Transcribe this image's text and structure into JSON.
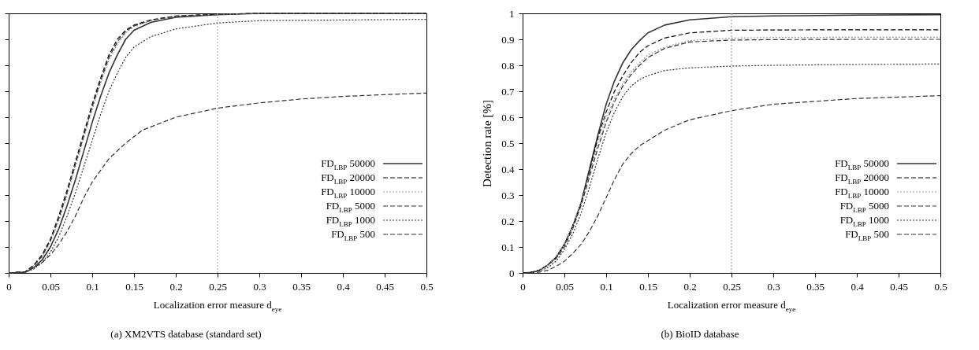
{
  "chart_data": [
    {
      "type": "line",
      "xlabel": "Localization error measure d$_{eye}$",
      "annotations": [
        "(a) XM2VTS database (standard set)"
      ],
      "xlim": [
        0,
        0.5
      ],
      "xticks": [
        0,
        0.05,
        0.1,
        0.15,
        0.2,
        0.25,
        0.3,
        0.35,
        0.4,
        0.45,
        0.5
      ],
      "ylim": [
        0,
        1
      ],
      "yticks": [
        0,
        0.1,
        0.2,
        0.3,
        0.4,
        0.5,
        0.6,
        0.7,
        0.8,
        0.9,
        1
      ],
      "tick_labels": "x",
      "grid": false,
      "legend": "bottom right",
      "ref_lines": [
        {
          "axis": "x",
          "value": 0.25,
          "color": "#999999",
          "line_style": "dotted"
        }
      ],
      "series": [
        {
          "name": "FD$_{LBP}$ 50000",
          "color": "#333333",
          "line_style": "solid",
          "x": [
            0,
            0.02,
            0.03,
            0.04,
            0.05,
            0.06,
            0.07,
            0.08,
            0.09,
            0.1,
            0.11,
            0.12,
            0.13,
            0.14,
            0.15,
            0.17,
            0.2,
            0.25,
            0.3,
            0.5
          ],
          "values": [
            0,
            0.003,
            0.02,
            0.05,
            0.1,
            0.17,
            0.26,
            0.36,
            0.47,
            0.58,
            0.68,
            0.77,
            0.84,
            0.9,
            0.935,
            0.965,
            0.985,
            0.995,
            1,
            1
          ]
        },
        {
          "name": "FD$_{LBP}$ 20000",
          "color": "#000000",
          "line_style": "dashed",
          "x": [
            0,
            0.02,
            0.03,
            0.04,
            0.05,
            0.06,
            0.07,
            0.08,
            0.09,
            0.1,
            0.11,
            0.12,
            0.13,
            0.14,
            0.15,
            0.17,
            0.2,
            0.25,
            0.3,
            0.5
          ],
          "values": [
            0,
            0.005,
            0.03,
            0.07,
            0.13,
            0.22,
            0.32,
            0.43,
            0.54,
            0.65,
            0.75,
            0.84,
            0.9,
            0.935,
            0.955,
            0.975,
            0.99,
            0.997,
            1,
            1
          ]
        },
        {
          "name": "FD$_{LBP}$ 10000",
          "color": "#999999",
          "line_style": "dotted",
          "x": [
            0,
            0.02,
            0.03,
            0.04,
            0.05,
            0.06,
            0.07,
            0.08,
            0.09,
            0.1,
            0.11,
            0.12,
            0.13,
            0.14,
            0.15,
            0.17,
            0.2,
            0.25,
            0.3,
            0.5
          ],
          "values": [
            0,
            0.004,
            0.025,
            0.06,
            0.12,
            0.2,
            0.3,
            0.41,
            0.52,
            0.63,
            0.73,
            0.82,
            0.88,
            0.925,
            0.95,
            0.972,
            0.988,
            0.996,
            1,
            1
          ]
        },
        {
          "name": "FD$_{LBP}$ 5000",
          "color": "#333333",
          "line_style": "dashed",
          "x": [
            0,
            0.02,
            0.03,
            0.04,
            0.05,
            0.06,
            0.07,
            0.08,
            0.09,
            0.1,
            0.11,
            0.12,
            0.13,
            0.14,
            0.15,
            0.17,
            0.2,
            0.25,
            0.3,
            0.5
          ],
          "values": [
            0,
            0.004,
            0.027,
            0.065,
            0.125,
            0.21,
            0.31,
            0.42,
            0.53,
            0.64,
            0.74,
            0.83,
            0.89,
            0.93,
            0.952,
            0.973,
            0.989,
            0.996,
            1,
            1
          ]
        },
        {
          "name": "FD$_{LBP}$ 1000",
          "color": "#333333",
          "line_style": "dotted",
          "x": [
            0,
            0.02,
            0.03,
            0.04,
            0.05,
            0.06,
            0.07,
            0.08,
            0.09,
            0.1,
            0.11,
            0.12,
            0.13,
            0.14,
            0.15,
            0.17,
            0.2,
            0.25,
            0.3,
            0.5
          ],
          "values": [
            0,
            0.002,
            0.015,
            0.04,
            0.08,
            0.14,
            0.22,
            0.31,
            0.41,
            0.51,
            0.61,
            0.7,
            0.77,
            0.83,
            0.87,
            0.91,
            0.94,
            0.963,
            0.972,
            0.977
          ]
        },
        {
          "name": "FD$_{LBP}$ 500",
          "color": "#333333",
          "line_style": "dashed",
          "x": [
            0,
            0.02,
            0.03,
            0.04,
            0.05,
            0.06,
            0.07,
            0.08,
            0.09,
            0.1,
            0.12,
            0.14,
            0.16,
            0.18,
            0.2,
            0.25,
            0.3,
            0.35,
            0.4,
            0.45,
            0.5
          ],
          "values": [
            0,
            0.005,
            0.02,
            0.04,
            0.07,
            0.11,
            0.16,
            0.22,
            0.29,
            0.35,
            0.44,
            0.5,
            0.55,
            0.575,
            0.6,
            0.635,
            0.655,
            0.67,
            0.68,
            0.687,
            0.693
          ]
        }
      ]
    },
    {
      "type": "line",
      "xlabel": "Localization error measure d$_{eye}$",
      "ylabel": "Detection rate [%]",
      "annotations": [
        "(b) BioID database"
      ],
      "xlim": [
        0,
        0.5
      ],
      "xticks": [
        0,
        0.05,
        0.1,
        0.15,
        0.2,
        0.25,
        0.3,
        0.35,
        0.4,
        0.45,
        0.5
      ],
      "ylim": [
        0,
        1
      ],
      "yticks": [
        0,
        0.1,
        0.2,
        0.3,
        0.4,
        0.5,
        0.6,
        0.7,
        0.8,
        0.9,
        1
      ],
      "grid": false,
      "legend": "bottom right",
      "ref_lines": [
        {
          "axis": "x",
          "value": 0.25,
          "color": "#999999",
          "line_style": "dotted"
        }
      ],
      "series": [
        {
          "name": "FD$_{LBP}$ 50000",
          "color": "#333333",
          "line_style": "solid",
          "x": [
            0,
            0.01,
            0.02,
            0.03,
            0.04,
            0.05,
            0.06,
            0.07,
            0.08,
            0.09,
            0.1,
            0.11,
            0.12,
            0.13,
            0.14,
            0.15,
            0.17,
            0.2,
            0.25,
            0.3,
            0.4,
            0.5
          ],
          "values": [
            0,
            0.002,
            0.01,
            0.03,
            0.06,
            0.11,
            0.18,
            0.27,
            0.4,
            0.53,
            0.65,
            0.74,
            0.81,
            0.86,
            0.895,
            0.925,
            0.955,
            0.975,
            0.987,
            0.99,
            0.993,
            0.995
          ]
        },
        {
          "name": "FD$_{LBP}$ 20000",
          "color": "#000000",
          "line_style": "dashed",
          "x": [
            0,
            0.01,
            0.02,
            0.03,
            0.04,
            0.05,
            0.06,
            0.07,
            0.08,
            0.09,
            0.1,
            0.11,
            0.12,
            0.13,
            0.14,
            0.15,
            0.17,
            0.2,
            0.25,
            0.3,
            0.4,
            0.5
          ],
          "values": [
            0,
            0.002,
            0.01,
            0.03,
            0.06,
            0.11,
            0.18,
            0.27,
            0.39,
            0.52,
            0.62,
            0.7,
            0.76,
            0.81,
            0.85,
            0.875,
            0.905,
            0.925,
            0.935,
            0.936,
            0.937,
            0.937
          ]
        },
        {
          "name": "FD$_{LBP}$ 10000",
          "color": "#999999",
          "line_style": "dotted",
          "x": [
            0,
            0.01,
            0.02,
            0.03,
            0.04,
            0.05,
            0.06,
            0.07,
            0.08,
            0.09,
            0.1,
            0.11,
            0.12,
            0.13,
            0.14,
            0.15,
            0.17,
            0.2,
            0.25,
            0.3,
            0.4,
            0.5
          ],
          "values": [
            0,
            0.002,
            0.01,
            0.03,
            0.06,
            0.11,
            0.18,
            0.27,
            0.38,
            0.5,
            0.6,
            0.67,
            0.73,
            0.775,
            0.81,
            0.84,
            0.87,
            0.895,
            0.905,
            0.907,
            0.908,
            0.908
          ]
        },
        {
          "name": "FD$_{LBP}$ 5000",
          "color": "#333333",
          "line_style": "dashed",
          "x": [
            0,
            0.01,
            0.02,
            0.03,
            0.04,
            0.05,
            0.06,
            0.07,
            0.08,
            0.09,
            0.1,
            0.11,
            0.12,
            0.13,
            0.14,
            0.15,
            0.17,
            0.2,
            0.25,
            0.3,
            0.4,
            0.5
          ],
          "values": [
            0,
            0.002,
            0.01,
            0.03,
            0.055,
            0.1,
            0.17,
            0.26,
            0.37,
            0.48,
            0.58,
            0.66,
            0.72,
            0.765,
            0.8,
            0.83,
            0.865,
            0.89,
            0.897,
            0.899,
            0.9,
            0.9
          ]
        },
        {
          "name": "FD$_{LBP}$ 1000",
          "color": "#333333",
          "line_style": "dotted",
          "x": [
            0,
            0.01,
            0.02,
            0.03,
            0.04,
            0.05,
            0.06,
            0.07,
            0.08,
            0.09,
            0.1,
            0.11,
            0.12,
            0.13,
            0.14,
            0.15,
            0.17,
            0.2,
            0.25,
            0.3,
            0.4,
            0.5
          ],
          "values": [
            0,
            0.001,
            0.007,
            0.02,
            0.045,
            0.09,
            0.15,
            0.23,
            0.33,
            0.44,
            0.54,
            0.62,
            0.68,
            0.72,
            0.745,
            0.76,
            0.78,
            0.79,
            0.797,
            0.8,
            0.803,
            0.805
          ]
        },
        {
          "name": "FD$_{LBP}$ 500",
          "color": "#333333",
          "line_style": "dashed",
          "x": [
            0,
            0.01,
            0.02,
            0.03,
            0.04,
            0.05,
            0.06,
            0.07,
            0.08,
            0.09,
            0.1,
            0.11,
            0.12,
            0.13,
            0.14,
            0.15,
            0.17,
            0.2,
            0.25,
            0.3,
            0.4,
            0.5
          ],
          "values": [
            0,
            0.001,
            0.003,
            0.01,
            0.025,
            0.045,
            0.075,
            0.11,
            0.16,
            0.22,
            0.29,
            0.36,
            0.42,
            0.46,
            0.49,
            0.51,
            0.55,
            0.59,
            0.625,
            0.65,
            0.672,
            0.683
          ]
        }
      ]
    }
  ]
}
